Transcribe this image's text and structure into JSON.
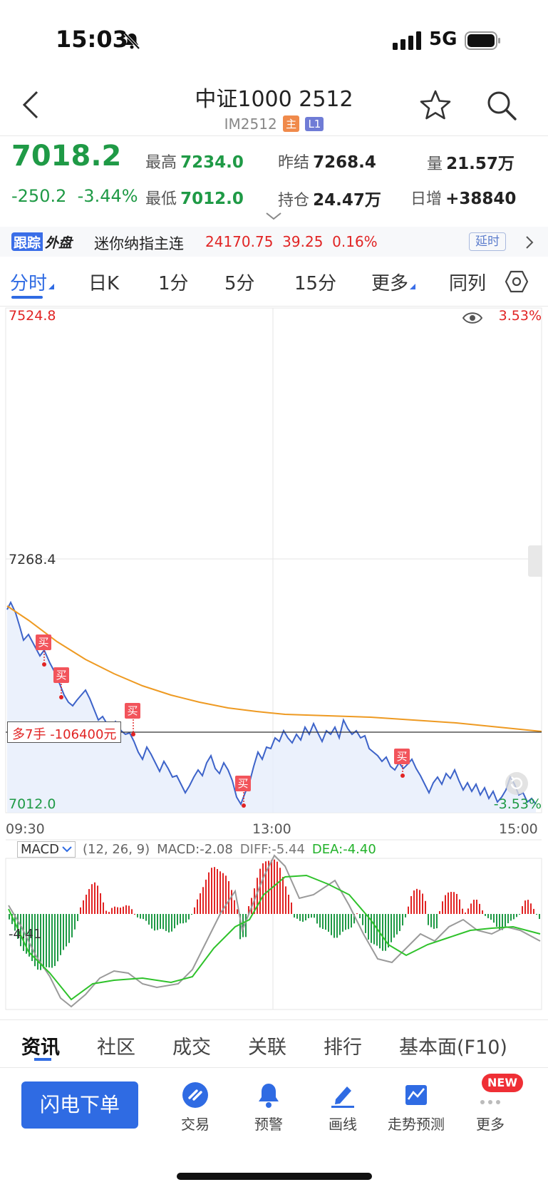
{
  "status_bar": {
    "time": "15:03",
    "network": "5G"
  },
  "header": {
    "title": "中证1000 2512",
    "code": "IM2512",
    "badge_main": "主",
    "badge_level": "L1"
  },
  "quote": {
    "price": "7018.2",
    "change": "-250.2",
    "change_pct": "-3.44%",
    "high_label": "最高",
    "high": "7234.0",
    "low_label": "最低",
    "low": "7012.0",
    "prev_settle_label": "昨结",
    "prev_settle": "7268.4",
    "open_interest_label": "持仓",
    "open_interest": "24.47万",
    "volume_label": "量",
    "volume": "21.57万",
    "daily_increase_label": "日增",
    "daily_increase": "+38840"
  },
  "ticker": {
    "tag_a": "跟踪",
    "tag_b": "外盘",
    "name": "迷你纳指主连",
    "price": "24170.75",
    "change": "39.25",
    "change_pct": "0.16%",
    "delay_label": "延时"
  },
  "tabs": [
    "分时",
    "日K",
    "1分",
    "5分",
    "15分",
    "更多",
    "同列"
  ],
  "chart": {
    "y_top": "7524.8",
    "y_mid": "7268.4",
    "y_low": "7012.0",
    "pct_top": "3.53%",
    "pct_low": "-3.53%",
    "t_start": "09:30",
    "t_mid": "13:00",
    "t_end": "15:00",
    "position_label": "多7手",
    "position_pnl": "-106400元",
    "buy_tag": "买",
    "colors": {
      "price_line": "#3d63c9",
      "avg_line": "#ee9a22",
      "up": "#e12424",
      "down": "#1f9a46"
    }
  },
  "chart_data": {
    "type": "line",
    "ylim": [
      7012.0,
      7524.8
    ],
    "reference": 7268.4,
    "x_ticks": [
      "09:30",
      "13:00",
      "15:00"
    ],
    "series": [],
    "macd": {
      "params": "(12, 26, 9)",
      "name": "MACD",
      "macd_label": "MACD:",
      "macd": "-2.08",
      "diff_label": "DIFF:",
      "diff": "-5.44",
      "dea_label": "DEA:",
      "dea": "-4.40",
      "y_label": "-4.41"
    }
  },
  "bottom_tabs": [
    "资讯",
    "社区",
    "成交",
    "关联",
    "排行",
    "基本面(F10)"
  ],
  "bottom_bar": {
    "flash_order": "闪电下单",
    "items": [
      "交易",
      "预警",
      "画线",
      "走势预测",
      "更多"
    ],
    "new_badge": "NEW"
  }
}
